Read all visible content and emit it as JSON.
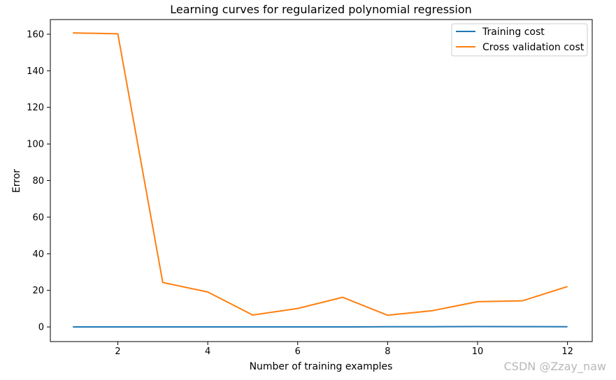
{
  "chart_data": {
    "type": "line",
    "title": "Learning curves for regularized polynomial regression",
    "xlabel": "Number of training examples",
    "ylabel": "Error",
    "x": [
      1,
      2,
      3,
      4,
      5,
      6,
      7,
      8,
      9,
      10,
      11,
      12
    ],
    "xlim": [
      0.5,
      12.55
    ],
    "ylim": [
      -8.0,
      168.0
    ],
    "xticks": [
      2,
      4,
      6,
      8,
      10,
      12
    ],
    "yticks": [
      0,
      20,
      40,
      60,
      80,
      100,
      120,
      140,
      160
    ],
    "grid": false,
    "legend": "top-right",
    "series": [
      {
        "name": "Training cost",
        "color": "#1f77b4",
        "values": [
          0.0,
          0.0,
          0.0,
          0.0,
          0.0,
          0.0,
          0.0,
          0.1,
          0.15,
          0.2,
          0.18,
          0.15
        ]
      },
      {
        "name": "Cross validation cost",
        "color": "#ff7f0e",
        "values": [
          160.7,
          160.2,
          24.3,
          19.1,
          6.5,
          10.1,
          16.2,
          6.4,
          8.9,
          13.8,
          14.3,
          22.1
        ]
      }
    ]
  },
  "watermark": "CSDN @Zzay_naw"
}
